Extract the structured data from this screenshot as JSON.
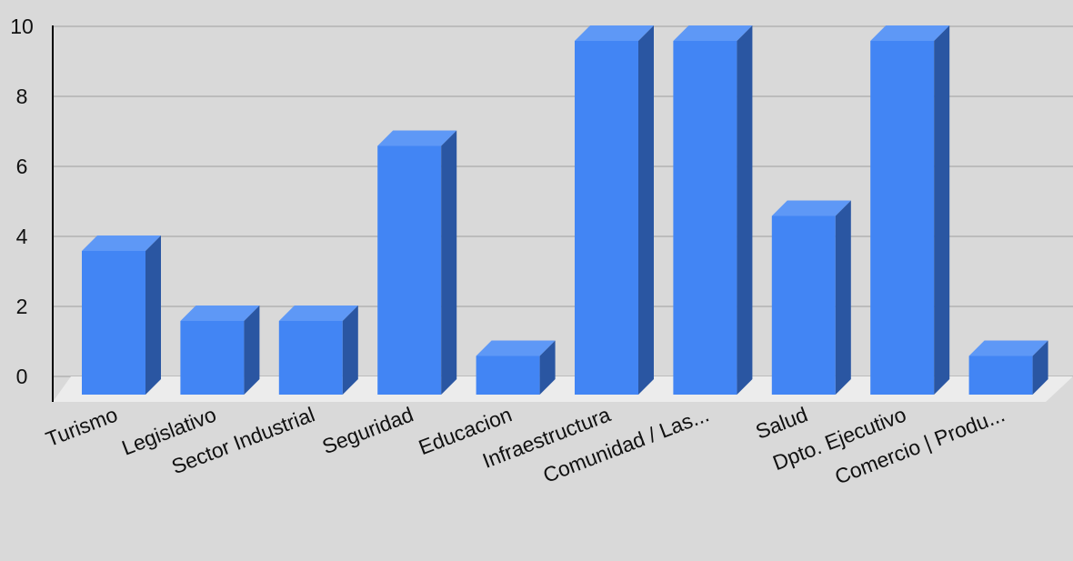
{
  "chart_data": {
    "type": "bar",
    "categories": [
      "Turismo",
      "Legislativo",
      "Sector Industrial",
      "Seguridad",
      "Educacion",
      "Infraestructura",
      "Comunidad / Las...",
      "Salud",
      "Dpto. Ejecutivo",
      "Comercio | Produ..."
    ],
    "values": [
      4,
      2,
      2,
      7,
      1,
      10,
      10,
      5,
      10,
      1
    ],
    "yticks": [
      "0",
      "2",
      "4",
      "6",
      "8",
      "10"
    ],
    "ylim": [
      0,
      10
    ],
    "grid": true,
    "bar_style": "3d",
    "colors": {
      "front": "#4285f4",
      "top": "#5e98f6",
      "side": "#2a56a2",
      "floor": "#ececec",
      "grid": "#b3b3b3",
      "background": "#d9d9d9"
    }
  }
}
